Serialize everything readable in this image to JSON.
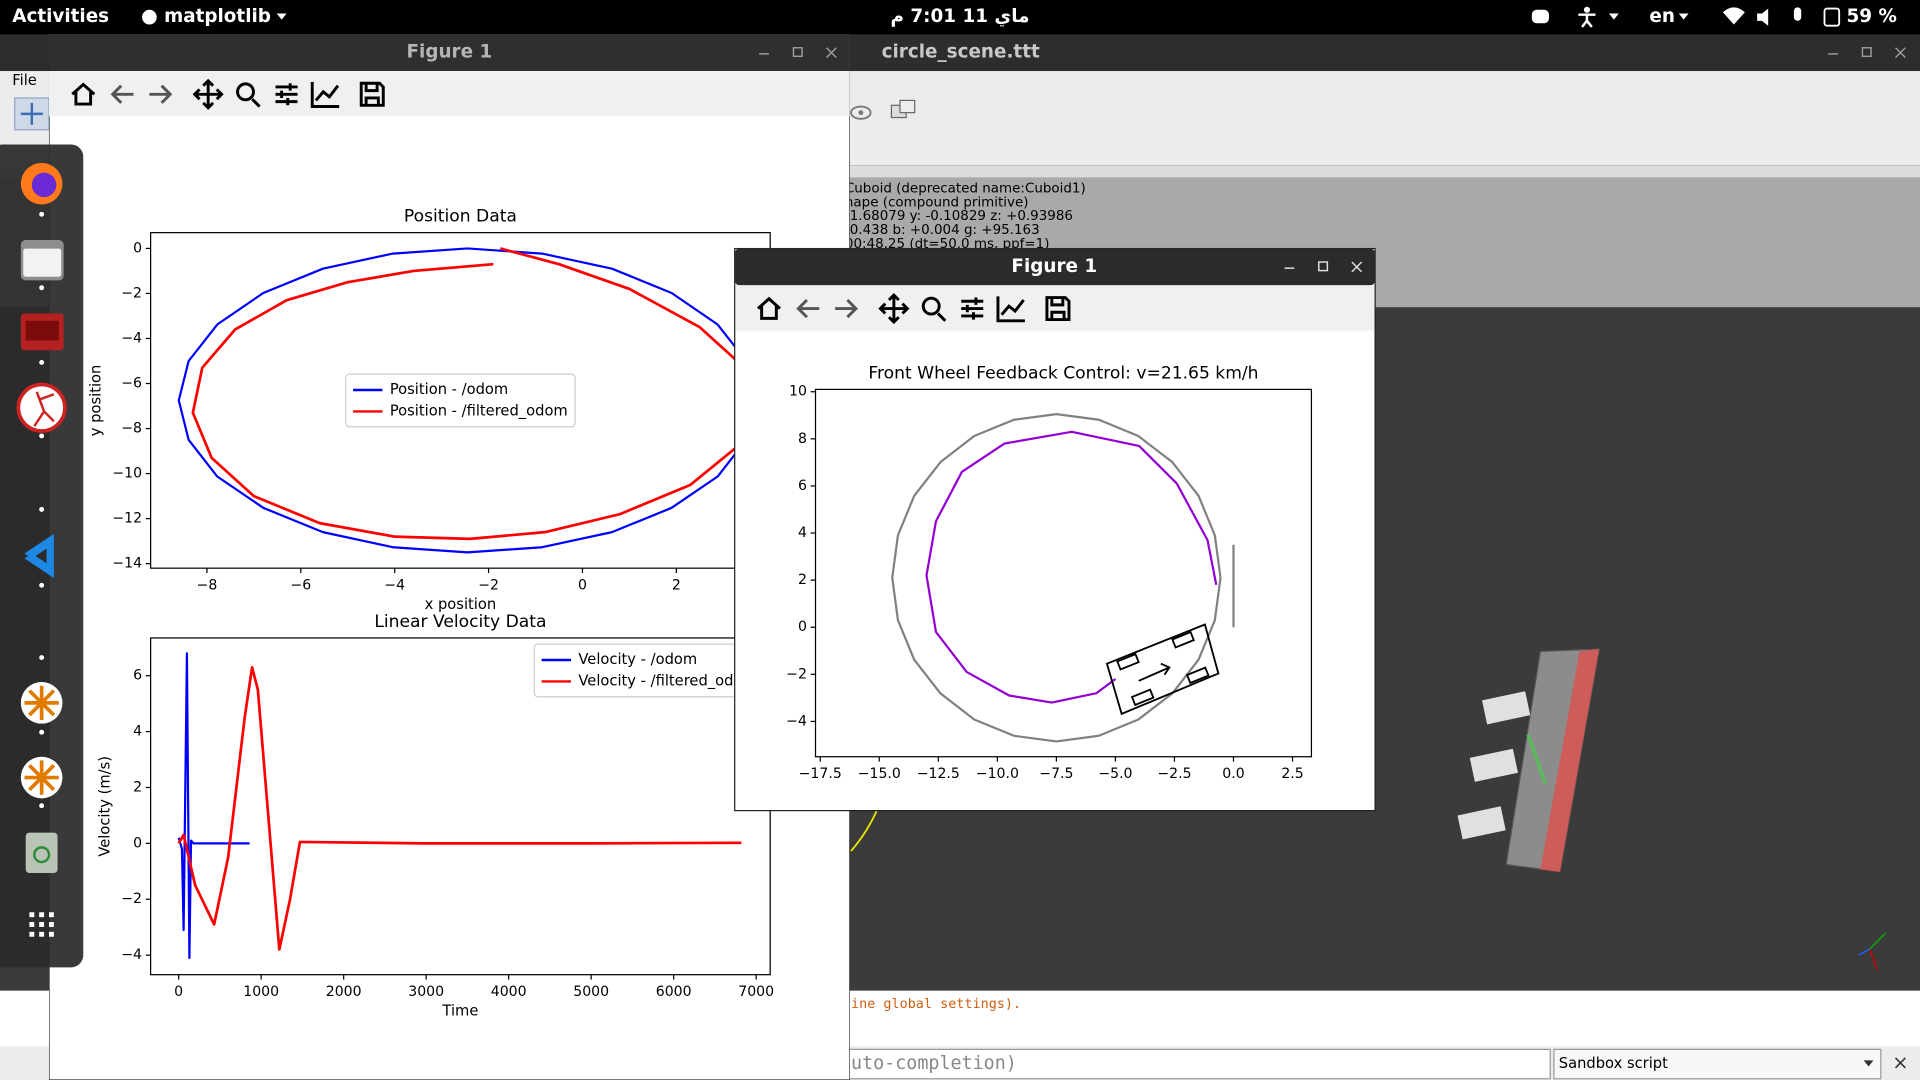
{
  "top_bar": {
    "activities": "Activities",
    "app_menu": "matplotlib",
    "clock": "ماي 11  7:01 م",
    "keyboard": "en",
    "battery": "59 %"
  },
  "coppelia_window": {
    "title": "circle_scene.ttt",
    "menu": "File",
    "info_lines": [
      "Cuboid   (deprecated name:Cuboid1)",
      "hape (compound primitive)",
      "-1.68079   y: -0.10829   z: +0.93986",
      "-0.438   b: +0.004   g: +95.163",
      "00:48.25 (dt=50.0 ms, ppf=1)"
    ],
    "console_output": "ine global settings).",
    "console_input": "uto-completion)",
    "script_selector": "Sandbox script"
  },
  "figure_windows": [
    {
      "title": "Figure 1"
    },
    {
      "title": "Figure 1"
    }
  ],
  "chart_data": [
    {
      "type": "line",
      "title": "Position Data",
      "xlabel": "x position",
      "ylabel": "y position",
      "xlim": [
        -9.2,
        4.0
      ],
      "ylim": [
        -14.2,
        0.7
      ],
      "xticks": [
        {
          "value": -8,
          "label": "−8"
        },
        {
          "value": -6,
          "label": "−6"
        },
        {
          "value": -4,
          "label": "−4"
        },
        {
          "value": -2,
          "label": "−2"
        },
        0,
        2
      ],
      "yticks": [
        0,
        {
          "value": -2,
          "label": "−2"
        },
        {
          "value": -4,
          "label": "−4"
        },
        {
          "value": -6,
          "label": "−6"
        },
        {
          "value": -8,
          "label": "−8"
        },
        {
          "value": -10,
          "label": "−10"
        },
        {
          "value": -12,
          "label": "−12"
        },
        {
          "value": -14,
          "label": "−14"
        }
      ],
      "legend": "center",
      "series": [
        {
          "name": "Position - /odom",
          "color": "#0000ff",
          "x": [
            -2.45,
            -0.86,
            0.63,
            1.9,
            2.88,
            3.49,
            3.7,
            3.49,
            2.88,
            1.9,
            0.63,
            -0.86,
            -2.45,
            -4.04,
            -5.53,
            -6.8,
            -7.78,
            -8.39,
            -8.6,
            -8.39,
            -7.78,
            -6.8,
            -5.53,
            -4.04,
            -2.45
          ],
          "values": [
            0.0,
            -0.23,
            -0.9,
            -1.98,
            -3.38,
            -5.0,
            -6.75,
            -8.5,
            -10.13,
            -11.52,
            -12.6,
            -13.27,
            -13.5,
            -13.27,
            -12.6,
            -11.52,
            -10.13,
            -8.5,
            -6.75,
            -5.0,
            -3.38,
            -1.98,
            -0.9,
            -0.23,
            0.0
          ]
        },
        {
          "name": "Position - /filtered_odom",
          "color": "#ff0000",
          "x": [
            -1.75,
            -0.5,
            1.0,
            2.5,
            3.4,
            3.6,
            3.3,
            2.3,
            0.8,
            -0.8,
            -2.4,
            -4.0,
            -5.6,
            -7.0,
            -7.9,
            -8.3,
            -8.1,
            -7.4,
            -6.3,
            -5.0,
            -3.6,
            -1.9
          ],
          "values": [
            0.0,
            -0.7,
            -1.8,
            -3.5,
            -5.2,
            -7.0,
            -8.8,
            -10.5,
            -11.8,
            -12.6,
            -12.9,
            -12.8,
            -12.2,
            -11.0,
            -9.3,
            -7.3,
            -5.3,
            -3.6,
            -2.3,
            -1.5,
            -1.0,
            -0.7
          ]
        }
      ]
    },
    {
      "type": "line",
      "title": "Linear Velocity Data",
      "xlabel": "Time",
      "ylabel": "Velocity (m/s)",
      "xlim": [
        -340,
        7170
      ],
      "ylim": [
        -4.7,
        7.35
      ],
      "xticks": [
        0,
        1000,
        2000,
        3000,
        4000,
        5000,
        6000,
        7000
      ],
      "yticks": [
        {
          "value": -4,
          "label": "−4"
        },
        {
          "value": -2,
          "label": "−2"
        },
        0,
        2,
        4,
        6
      ],
      "legend": "upper right",
      "series": [
        {
          "name": "Velocity - /odom",
          "color": "#0000ff",
          "x": [
            0,
            40,
            60,
            100,
            130,
            150,
            180,
            860
          ],
          "values": [
            0.2,
            -0.2,
            -3.1,
            6.8,
            -4.1,
            0.1,
            0.0,
            0.0
          ]
        },
        {
          "name": "Velocity - /filtered_odom",
          "color": "#ff0000",
          "x": [
            0,
            60,
            200,
            430,
            600,
            800,
            890,
            960,
            1100,
            1220,
            1350,
            1470,
            3000,
            5000,
            6820
          ],
          "values": [
            0,
            0.3,
            -1.5,
            -2.9,
            -0.5,
            4.5,
            6.3,
            5.5,
            0.5,
            -3.8,
            -2.0,
            0.05,
            0.0,
            0.0,
            0.02
          ]
        }
      ]
    },
    {
      "type": "line",
      "title": "Front Wheel Feedback Control: v=21.65 km/h",
      "xlim": [
        -17.7,
        3.3
      ],
      "ylim": [
        -5.5,
        10.1
      ],
      "xticks": [
        {
          "value": -17.5,
          "label": "−17.5"
        },
        {
          "value": -15,
          "label": "−15.0"
        },
        {
          "value": -12.5,
          "label": "−12.5"
        },
        {
          "value": -10,
          "label": "−10.0"
        },
        {
          "value": -7.5,
          "label": "−7.5"
        },
        {
          "value": -5,
          "label": "−5.0"
        },
        {
          "value": -2.5,
          "label": "−2.5"
        },
        {
          "value": 0,
          "label": "0.0"
        },
        2.5
      ],
      "yticks": [
        {
          "value": -4,
          "label": "−4"
        },
        {
          "value": -2,
          "label": "−2"
        },
        0,
        2,
        4,
        6,
        8,
        10
      ],
      "series": [
        {
          "color": "#808080",
          "x": [
            -0.55,
            -0.79,
            -1.48,
            -2.59,
            -4.03,
            -5.7,
            -7.5,
            -9.3,
            -10.98,
            -12.41,
            -13.52,
            -14.21,
            -14.45,
            -14.21,
            -13.52,
            -12.41,
            -10.98,
            -9.3,
            -7.5,
            -5.7,
            -4.03,
            -2.59,
            -1.48,
            -0.79,
            -0.55
          ],
          "values": [
            2.1,
            3.9,
            5.58,
            7.01,
            8.12,
            8.81,
            9.05,
            8.81,
            8.12,
            7.01,
            5.58,
            3.9,
            2.1,
            0.3,
            -1.38,
            -2.81,
            -3.92,
            -4.61,
            -4.85,
            -4.61,
            -3.92,
            -2.81,
            -1.38,
            0.3,
            2.1
          ]
        },
        {
          "color": "#808080",
          "x": [
            0,
            0
          ],
          "values": [
            3.5,
            0
          ]
        },
        {
          "color": "#9400d3",
          "x": [
            -5.0,
            -5.8,
            -7.7,
            -9.5,
            -11.3,
            -12.6,
            -13.0,
            -12.6,
            -11.5,
            -9.7,
            -6.85,
            -4.0,
            -2.4,
            -1.1,
            -0.73
          ],
          "values": [
            -2.2,
            -2.8,
            -3.2,
            -2.9,
            -1.9,
            -0.2,
            2.2,
            4.5,
            6.6,
            7.8,
            8.3,
            7.7,
            6.1,
            3.7,
            1.8
          ]
        }
      ]
    }
  ]
}
